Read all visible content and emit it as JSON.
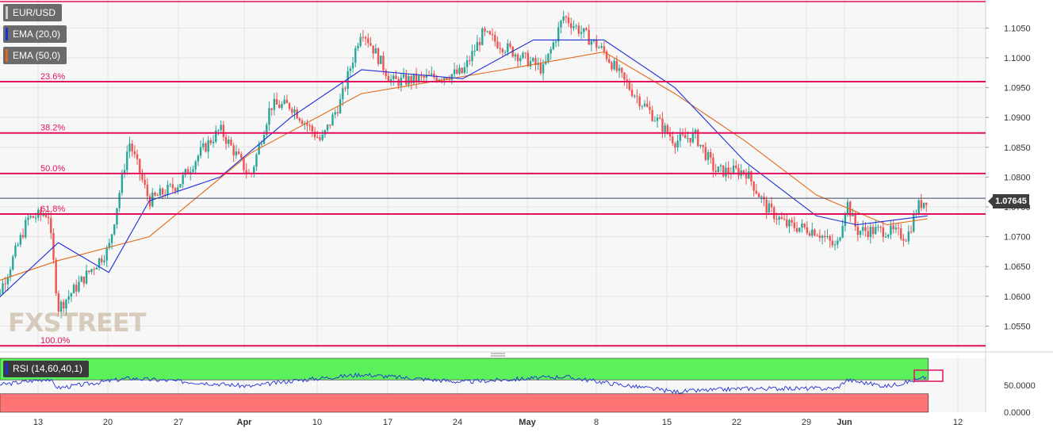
{
  "legend": {
    "symbol": "EUR/USD",
    "ema20": "EMA (20,0)",
    "ema50": "EMA (50,0)",
    "rsi": "RSI (14,60,40,1)"
  },
  "watermark": "FXSTREET",
  "price_tag": "1.07645",
  "colors": {
    "bull": "#26a69a",
    "bear": "#ef5350",
    "ema20": "#1f2fd6",
    "ema50": "#e06a1b",
    "fib": "#e0105f",
    "rsi_line": "#1f2fd6",
    "rsi_upper_zone": "#5cf05c",
    "rsi_lower_zone": "#ff7474"
  },
  "chart_data": [
    {
      "type": "candlestick",
      "title": "EUR/USD",
      "y_ticks": [
        "1.1050",
        "1.1000",
        "1.0950",
        "1.0900",
        "1.0850",
        "1.0800",
        "1.0750",
        "1.0700",
        "1.0650",
        "1.0600",
        "1.0550"
      ],
      "ylim": [
        1.0512,
        1.1097
      ],
      "x_ticks": [
        "13",
        "20",
        "27",
        "Apr",
        "10",
        "17",
        "24",
        "May",
        "8",
        "15",
        "22",
        "29",
        "Jun",
        "12"
      ],
      "grid": true,
      "fib_levels": [
        {
          "label": "23.6%",
          "value": 1.096
        },
        {
          "label": "38.2%",
          "value": 1.0874
        },
        {
          "label": "50.0%",
          "value": 1.0806
        },
        {
          "label": "61.8%",
          "value": 1.0738
        },
        {
          "label": "100.0%",
          "value": 1.0517
        }
      ],
      "current_price": 1.07645,
      "close_path": [
        {
          "x": "Mar 8",
          "y": 1.056
        },
        {
          "x": "Mar 10",
          "y": 1.064
        },
        {
          "x": "Mar 12",
          "y": 1.073
        },
        {
          "x": "Mar 14",
          "y": 1.074
        },
        {
          "x": "Mar 15",
          "y": 1.058
        },
        {
          "x": "Mar 17",
          "y": 1.062
        },
        {
          "x": "Mar 20",
          "y": 1.068
        },
        {
          "x": "Mar 22",
          "y": 1.086
        },
        {
          "x": "Mar 24",
          "y": 1.076
        },
        {
          "x": "Mar 27",
          "y": 1.079
        },
        {
          "x": "Mar 29",
          "y": 1.084
        },
        {
          "x": "Mar 31",
          "y": 1.088
        },
        {
          "x": "Apr 3",
          "y": 1.08
        },
        {
          "x": "Apr 5",
          "y": 1.092
        },
        {
          "x": "Apr 7",
          "y": 1.092
        },
        {
          "x": "Apr 10",
          "y": 1.086
        },
        {
          "x": "Apr 12",
          "y": 1.093
        },
        {
          "x": "Apr 14",
          "y": 1.105
        },
        {
          "x": "Apr 17",
          "y": 1.096
        },
        {
          "x": "Apr 20",
          "y": 1.0965
        },
        {
          "x": "Apr 24",
          "y": 1.0975
        },
        {
          "x": "Apr 26",
          "y": 1.104
        },
        {
          "x": "Apr 28",
          "y": 1.102
        },
        {
          "x": "May 2",
          "y": 1.098
        },
        {
          "x": "May 4",
          "y": 1.107
        },
        {
          "x": "May 8",
          "y": 1.101
        },
        {
          "x": "May 10",
          "y": 1.096
        },
        {
          "x": "May 12",
          "y": 1.092
        },
        {
          "x": "May 15",
          "y": 1.086
        },
        {
          "x": "May 17",
          "y": 1.087
        },
        {
          "x": "May 19",
          "y": 1.081
        },
        {
          "x": "May 22",
          "y": 1.081
        },
        {
          "x": "May 24",
          "y": 1.075
        },
        {
          "x": "May 26",
          "y": 1.072
        },
        {
          "x": "May 29",
          "y": 1.071
        },
        {
          "x": "May 31",
          "y": 1.068
        },
        {
          "x": "Jun 1",
          "y": 1.076
        },
        {
          "x": "Jun 2",
          "y": 1.071
        },
        {
          "x": "Jun 5",
          "y": 1.071
        },
        {
          "x": "Jun 7",
          "y": 1.07
        },
        {
          "x": "Jun 8",
          "y": 1.075
        },
        {
          "x": "Jun 9",
          "y": 1.0765
        }
      ],
      "ema20": [
        {
          "x": "Mar 8",
          "y": 1.058
        },
        {
          "x": "Mar 15",
          "y": 1.069
        },
        {
          "x": "Mar 20",
          "y": 1.064
        },
        {
          "x": "Mar 24",
          "y": 1.076
        },
        {
          "x": "Mar 31",
          "y": 1.08
        },
        {
          "x": "Apr 7",
          "y": 1.09
        },
        {
          "x": "Apr 14",
          "y": 1.098
        },
        {
          "x": "Apr 24",
          "y": 1.0965
        },
        {
          "x": "May 1",
          "y": 1.103
        },
        {
          "x": "May 8",
          "y": 1.103
        },
        {
          "x": "May 15",
          "y": 1.095
        },
        {
          "x": "May 22",
          "y": 1.0825
        },
        {
          "x": "May 29",
          "y": 1.0735
        },
        {
          "x": "Jun 2",
          "y": 1.072
        },
        {
          "x": "Jun 9",
          "y": 1.0735
        }
      ],
      "ema50": [
        {
          "x": "Mar 8",
          "y": 1.062
        },
        {
          "x": "Mar 15",
          "y": 1.066
        },
        {
          "x": "Mar 24",
          "y": 1.07
        },
        {
          "x": "Apr 3",
          "y": 1.084
        },
        {
          "x": "Apr 14",
          "y": 1.094
        },
        {
          "x": "Apr 28",
          "y": 1.098
        },
        {
          "x": "May 8",
          "y": 1.101
        },
        {
          "x": "May 15",
          "y": 1.094
        },
        {
          "x": "May 22",
          "y": 1.086
        },
        {
          "x": "May 29",
          "y": 1.077
        },
        {
          "x": "Jun 5",
          "y": 1.072
        },
        {
          "x": "Jun 9",
          "y": 1.073
        }
      ]
    },
    {
      "type": "line",
      "title": "RSI (14,60,40,1)",
      "y_ticks": [
        "50.0000",
        "0.0000"
      ],
      "ylim": [
        0,
        100
      ],
      "upper_zone": 60,
      "lower_zone": 40,
      "series": [
        {
          "name": "RSI (14,60,40,1)",
          "values": [
            {
              "x": "Mar 8",
              "y": 48
            },
            {
              "x": "Mar 14",
              "y": 62
            },
            {
              "x": "Mar 15",
              "y": 45
            },
            {
              "x": "Mar 22",
              "y": 63
            },
            {
              "x": "Mar 29",
              "y": 55
            },
            {
              "x": "Apr 3",
              "y": 48
            },
            {
              "x": "Apr 7",
              "y": 58
            },
            {
              "x": "Apr 14",
              "y": 70
            },
            {
              "x": "Apr 24",
              "y": 56
            },
            {
              "x": "May 4",
              "y": 66
            },
            {
              "x": "May 10",
              "y": 50
            },
            {
              "x": "May 15",
              "y": 38
            },
            {
              "x": "May 22",
              "y": 44
            },
            {
              "x": "May 31",
              "y": 44
            },
            {
              "x": "Jun 1",
              "y": 60
            },
            {
              "x": "Jun 5",
              "y": 48
            },
            {
              "x": "Jun 8",
              "y": 60
            },
            {
              "x": "Jun 9",
              "y": 66
            }
          ]
        }
      ]
    }
  ]
}
